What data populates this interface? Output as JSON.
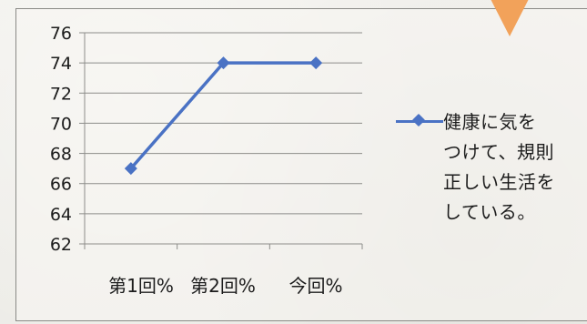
{
  "chart_data": {
    "type": "line",
    "categories": [
      "第1回%",
      "第2回%",
      "今回%"
    ],
    "series": [
      {
        "name": "健康に気をつけて、規則正しい生活をしている。",
        "values": [
          67,
          74,
          74
        ]
      }
    ],
    "yticks": [
      "62",
      "64",
      "66",
      "68",
      "70",
      "72",
      "74",
      "76"
    ],
    "ylim": [
      62,
      76
    ],
    "grid": true,
    "legend_position": "right",
    "colors": {
      "series": "#4a72c4",
      "grid": "#8d8d8a",
      "accent_shape": "#f2a25a"
    }
  },
  "legend": {
    "label": "健康に気を\nつけて、規則\n正しい生活を\nしている。"
  }
}
